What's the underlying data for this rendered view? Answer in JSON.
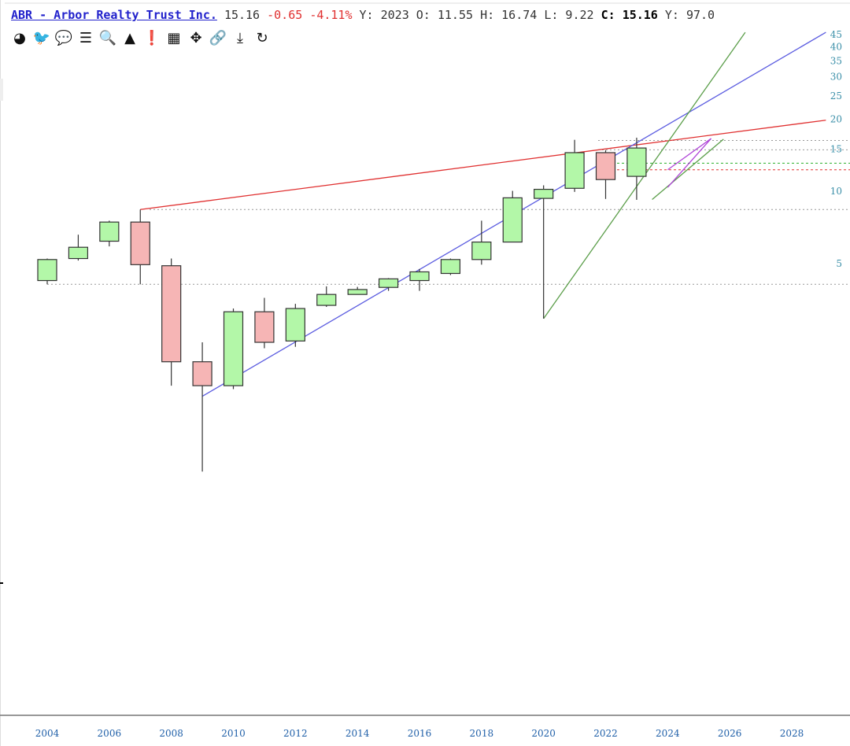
{
  "header": {
    "symbol_title": "ABR - Arbor Realty Trust Inc.",
    "price": "15.16",
    "change": "-0.65",
    "change_pct": "-4.11%",
    "year_label": "Y: 2023",
    "open_label": "O: 11.55",
    "high_label": "H: 16.74",
    "low_label": "L:   9.22",
    "close_key": "C:",
    "close_value": "15.16",
    "yield_label": "Y: 97.0"
  },
  "toolbar": [
    {
      "name": "dashboard-icon",
      "glyph": "◕"
    },
    {
      "name": "twitter-icon",
      "glyph": "🐦"
    },
    {
      "name": "comment-icon",
      "glyph": "💬"
    },
    {
      "name": "list-icon",
      "glyph": "☰"
    },
    {
      "name": "search-icon",
      "glyph": "🔍"
    },
    {
      "name": "triangle-icon",
      "glyph": "▲"
    },
    {
      "name": "exclamation-icon",
      "glyph": "❗"
    },
    {
      "name": "calendar-icon",
      "glyph": "▦"
    },
    {
      "name": "move-icon",
      "glyph": "✥"
    },
    {
      "name": "link-icon",
      "glyph": "🔗"
    },
    {
      "name": "download-icon",
      "glyph": "⤓"
    },
    {
      "name": "refresh-icon",
      "glyph": "↻"
    }
  ],
  "chart_data": {
    "type": "candlestick",
    "title": "",
    "xlabel": "",
    "ylabel": "",
    "y_scale": "log",
    "ylim": [
      1.3,
      46
    ],
    "xlim": [
      2003.6,
      2029.1
    ],
    "x_ticks": [
      2004,
      2006,
      2008,
      2010,
      2012,
      2014,
      2016,
      2018,
      2020,
      2022,
      2024,
      2026,
      2028
    ],
    "y_ticks": [
      5,
      10,
      15,
      20,
      25,
      30,
      35,
      40,
      45
    ],
    "colors": {
      "up": "#b3f7a8",
      "down": "#f6b5b5",
      "outline": "#333333"
    },
    "candles": [
      {
        "x": 2004,
        "open": 4.25,
        "close": 5.2,
        "high": 5.25,
        "low": 4.1
      },
      {
        "x": 2005,
        "open": 5.25,
        "close": 5.85,
        "high": 6.6,
        "low": 5.15
      },
      {
        "x": 2006,
        "open": 6.2,
        "close": 7.45,
        "high": 7.55,
        "low": 5.9
      },
      {
        "x": 2007,
        "open": 7.45,
        "close": 4.95,
        "high": 8.4,
        "low": 4.1
      },
      {
        "x": 2008,
        "open": 4.9,
        "close": 1.95,
        "high": 5.25,
        "low": 1.55
      },
      {
        "x": 2009,
        "open": 1.95,
        "close": 1.55,
        "high": 2.35,
        "low": 0.68
      },
      {
        "x": 2010,
        "open": 1.55,
        "close": 3.15,
        "high": 3.25,
        "low": 1.5
      },
      {
        "x": 2011,
        "open": 3.15,
        "close": 2.35,
        "high": 3.6,
        "low": 2.22
      },
      {
        "x": 2012,
        "open": 2.38,
        "close": 3.25,
        "high": 3.4,
        "low": 2.25
      },
      {
        "x": 2013,
        "open": 3.35,
        "close": 3.72,
        "high": 4.02,
        "low": 3.3
      },
      {
        "x": 2014,
        "open": 3.72,
        "close": 3.9,
        "high": 4.0,
        "low": 3.72
      },
      {
        "x": 2015,
        "open": 3.98,
        "close": 4.32,
        "high": 4.35,
        "low": 3.85
      },
      {
        "x": 2016,
        "open": 4.25,
        "close": 4.62,
        "high": 4.75,
        "low": 3.85
      },
      {
        "x": 2017,
        "open": 4.55,
        "close": 5.2,
        "high": 5.25,
        "low": 4.48
      },
      {
        "x": 2018,
        "open": 5.2,
        "close": 6.15,
        "high": 7.55,
        "low": 4.95
      },
      {
        "x": 2019,
        "open": 6.15,
        "close": 9.4,
        "high": 10.05,
        "low": 6.15
      },
      {
        "x": 2020,
        "open": 9.35,
        "close": 10.2,
        "high": 10.6,
        "low": 2.95
      },
      {
        "x": 2021,
        "open": 10.3,
        "close": 14.5,
        "high": 16.4,
        "low": 9.95
      },
      {
        "x": 2022,
        "open": 14.5,
        "close": 11.2,
        "high": 14.85,
        "low": 9.3
      },
      {
        "x": 2023,
        "open": 11.55,
        "close": 15.16,
        "high": 16.74,
        "low": 9.22
      }
    ],
    "horizontal_levels": [
      {
        "value": 16.3,
        "color": "#999999",
        "style": "dotted"
      },
      {
        "value": 14.9,
        "color": "#999999",
        "style": "dotted"
      },
      {
        "value": 13.1,
        "color": "#2bb02b",
        "style": "dashed"
      },
      {
        "value": 12.3,
        "color": "#e03030",
        "style": "dashed"
      },
      {
        "value": 8.4,
        "color": "#999999",
        "style": "dotted"
      },
      {
        "value": 4.1,
        "color": "#999999",
        "style": "dotted"
      }
    ],
    "trendlines": [
      {
        "color": "#e03030",
        "from": [
          2007,
          8.4
        ],
        "to": [
          2029.1,
          19.8
        ]
      },
      {
        "color": "#5b5ce0",
        "from": [
          2009,
          1.4
        ],
        "to": [
          2029.1,
          46
        ]
      },
      {
        "color": "#5b9e4a",
        "from": [
          2020,
          2.95
        ],
        "to": [
          2026.5,
          46
        ]
      },
      {
        "color": "#5b9e4a",
        "from": [
          2023.5,
          9.25
        ],
        "to": [
          2025.8,
          16.5
        ]
      },
      {
        "color": "#b045d8",
        "from": [
          2024,
          10.4
        ],
        "to": [
          2025.4,
          16.6
        ]
      },
      {
        "color": "#b045d8",
        "from": [
          2024,
          12.3
        ],
        "to": [
          2025.4,
          16.6
        ]
      }
    ]
  }
}
